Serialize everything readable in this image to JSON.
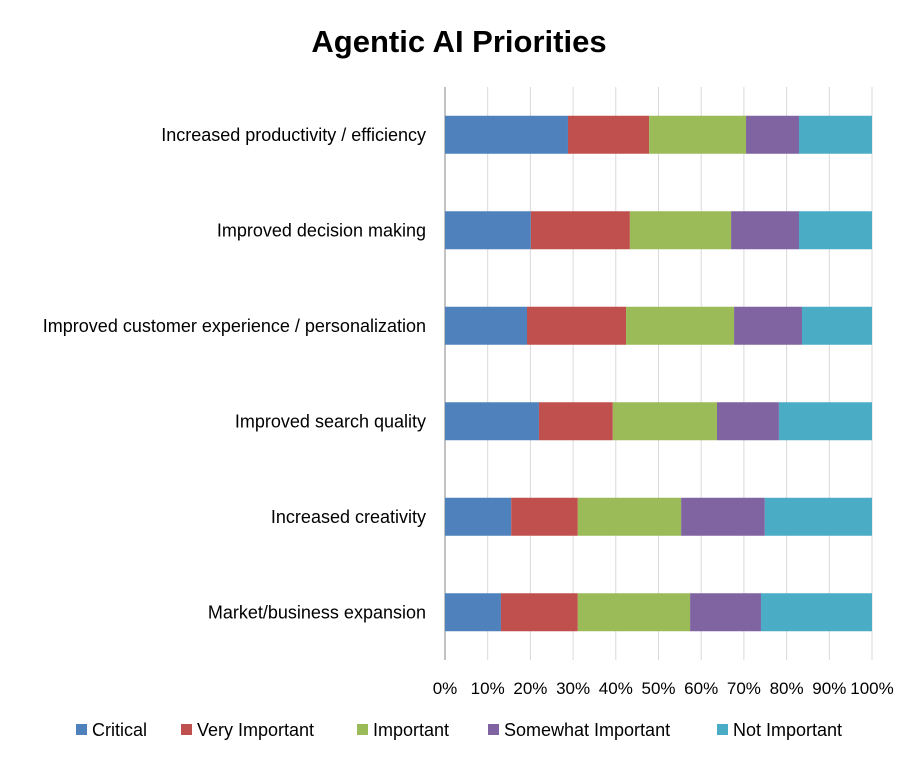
{
  "chart_data": {
    "type": "bar",
    "orientation": "horizontal",
    "stacked": "percent",
    "title": "Agentic AI Priorities",
    "categories": [
      "Increased productivity / efficiency",
      "Improved decision making",
      "Improved customer experience / personalization",
      "Improved search quality",
      "Increased creativity",
      "Market/business expansion"
    ],
    "series": [
      {
        "name": "Critical",
        "color": "#4F81BD",
        "values": [
          28.8,
          20.1,
          19.2,
          22.0,
          15.5,
          13.1
        ]
      },
      {
        "name": "Very Important",
        "color": "#C0504D",
        "values": [
          19.0,
          23.2,
          23.2,
          17.3,
          15.6,
          18.0
        ]
      },
      {
        "name": "Important",
        "color": "#9BBB59",
        "values": [
          22.7,
          23.7,
          25.3,
          24.4,
          24.2,
          26.3
        ]
      },
      {
        "name": "Somewhat Important",
        "color": "#8064A2",
        "values": [
          12.4,
          15.9,
          15.9,
          14.5,
          19.6,
          16.6
        ]
      },
      {
        "name": "Not Important",
        "color": "#4BACC6",
        "values": [
          17.1,
          17.1,
          16.4,
          21.8,
          25.1,
          26.0
        ]
      }
    ],
    "xlim": [
      0,
      100
    ],
    "xticks": [
      "0%",
      "10%",
      "20%",
      "30%",
      "40%",
      "50%",
      "60%",
      "70%",
      "80%",
      "90%",
      "100%"
    ],
    "grid": true,
    "legend": "bottom"
  }
}
